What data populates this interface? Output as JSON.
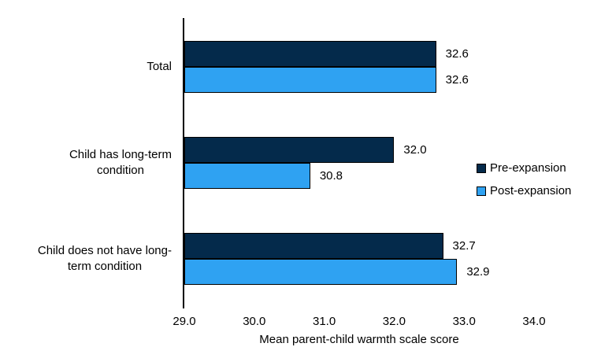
{
  "chart_data": {
    "type": "bar",
    "orientation": "horizontal",
    "title": "",
    "xlabel": "Mean parent-child warmth scale score",
    "xlim": [
      29.0,
      34.0
    ],
    "xticks": [
      "29.0",
      "30.0",
      "31.0",
      "32.0",
      "33.0",
      "34.0"
    ],
    "xtick_values": [
      29.0,
      30.0,
      31.0,
      32.0,
      33.0,
      34.0
    ],
    "grid": false,
    "legend_position": "right",
    "categories": [
      {
        "label": "Total",
        "lines": [
          "Total"
        ]
      },
      {
        "label": "Child has long-term condition",
        "lines": [
          "Child has long-term",
          "condition"
        ]
      },
      {
        "label": "Child does not have long-term condition",
        "lines": [
          "Child does not have long-",
          "term condition"
        ]
      }
    ],
    "series": [
      {
        "name": "Pre-expansion",
        "color": "#042a4b",
        "values": [
          32.6,
          32.0,
          32.7
        ],
        "value_labels": [
          "32.6",
          "32.0",
          "32.7"
        ]
      },
      {
        "name": "Post-expansion",
        "color": "#2fa2f2",
        "values": [
          32.6,
          30.8,
          32.9
        ],
        "value_labels": [
          "32.6",
          "30.8",
          "32.9"
        ]
      }
    ],
    "bar_border_color": "#000000",
    "axis_color": "#000000",
    "value_label_decimals": 1
  }
}
